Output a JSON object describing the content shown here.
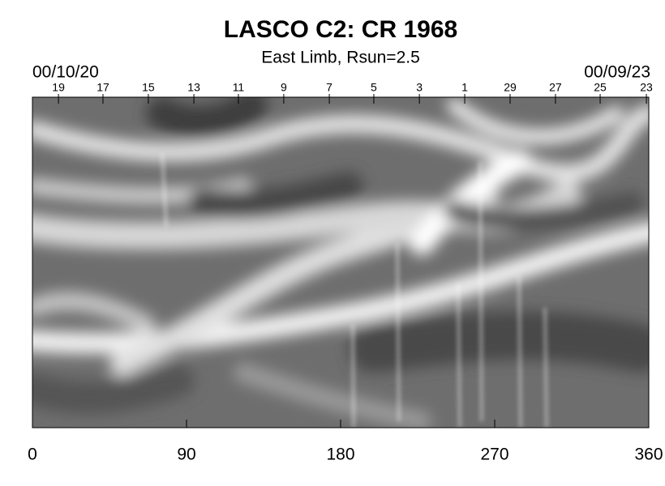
{
  "chart_data": {
    "type": "image",
    "title": "LASCO C2: CR 1968",
    "subtitle": "East Limb, Rsun=2.5",
    "start_date": "00/10/20",
    "end_date": "00/09/23",
    "xlim": [
      0,
      360
    ],
    "xticks": [
      0,
      90,
      180,
      270,
      360
    ],
    "x2lim": [
      0,
      360
    ],
    "x2ticks": [
      {
        "value": 15.2,
        "label": "19"
      },
      {
        "value": 41.2,
        "label": "17"
      },
      {
        "value": 67.7,
        "label": "15"
      },
      {
        "value": 94.3,
        "label": "13"
      },
      {
        "value": 120.3,
        "label": "11"
      },
      {
        "value": 146.8,
        "label": "9"
      },
      {
        "value": 173.4,
        "label": "7"
      },
      {
        "value": 199.4,
        "label": "5"
      },
      {
        "value": 226,
        "label": "3"
      },
      {
        "value": 252.5,
        "label": "1"
      },
      {
        "value": 279,
        "label": "29"
      },
      {
        "value": 305.5,
        "label": "27"
      },
      {
        "value": 331.6,
        "label": "25"
      },
      {
        "value": 358.6,
        "label": "23"
      }
    ]
  }
}
